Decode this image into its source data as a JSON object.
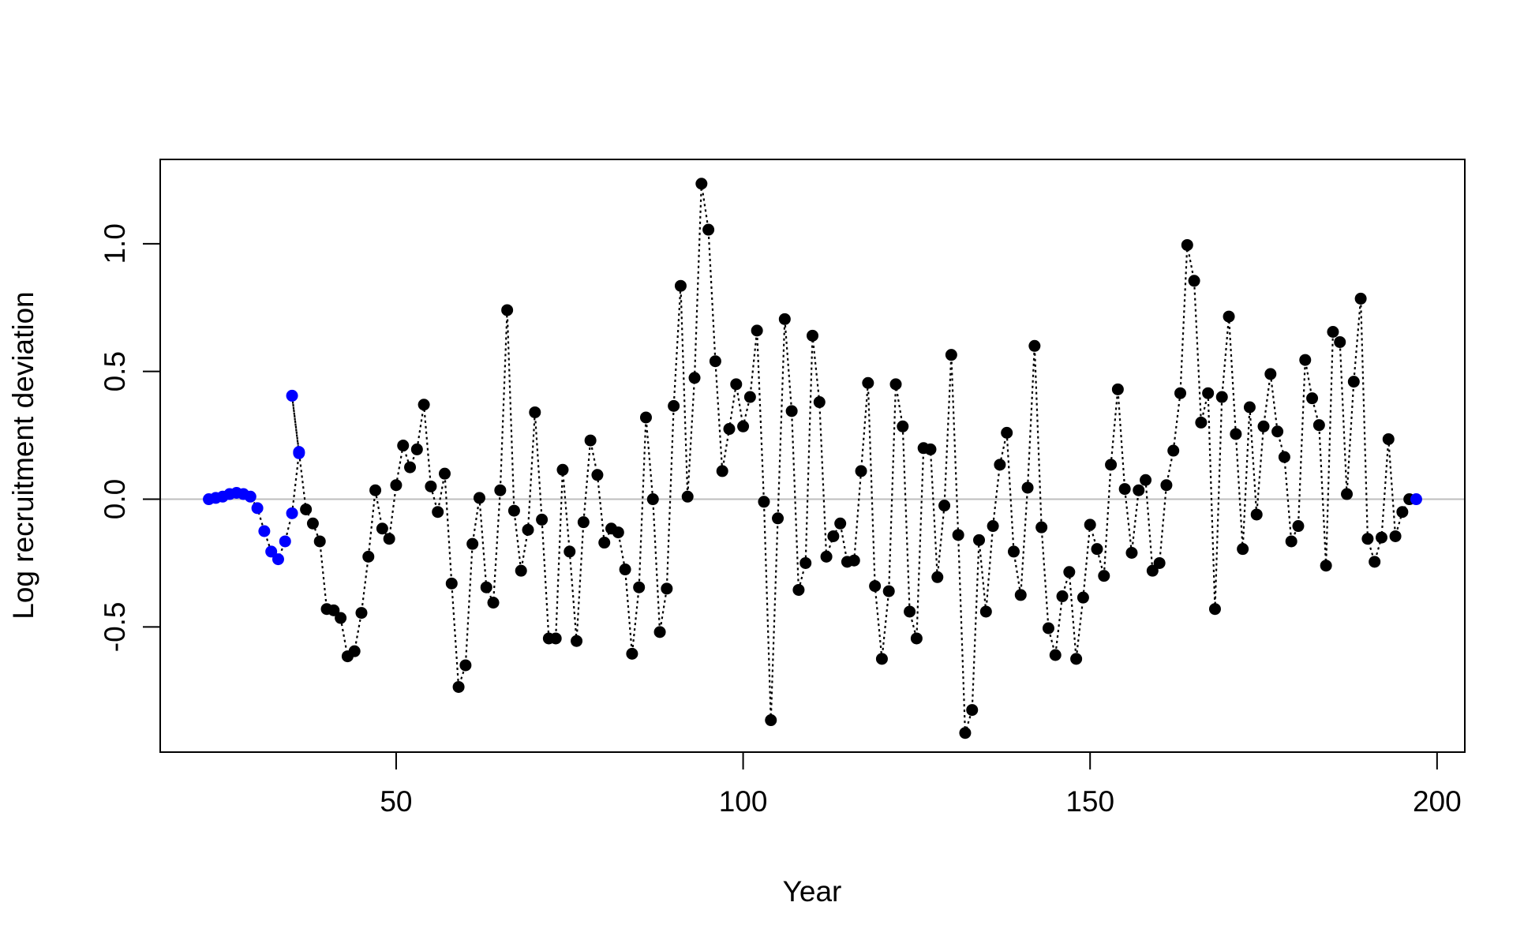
{
  "chart_data": {
    "type": "scatter",
    "title": "",
    "xlabel": "Year",
    "ylabel": "Log recruitment deviation",
    "xlim": [
      16,
      204
    ],
    "ylim": [
      -0.99,
      1.33
    ],
    "x_ticks": [
      50,
      100,
      150,
      200
    ],
    "x_tick_labels": [
      "50",
      "100",
      "150",
      "200"
    ],
    "y_ticks": [
      -0.5,
      0.0,
      0.5,
      1.0
    ],
    "y_tick_labels": [
      "-0.5",
      "0.0",
      "0.5",
      "1.0"
    ],
    "grid": false,
    "legend": "none",
    "reference_line": {
      "y": 0,
      "color": "#bebebe"
    },
    "line_style": "dotted",
    "colors": {
      "early": "#0000ff",
      "main": "#000000",
      "final": "#0000ff"
    },
    "series": [
      {
        "color": "#0000ff",
        "x": [
          23,
          24,
          25,
          26,
          27,
          28,
          29,
          30,
          31,
          32,
          33,
          34,
          35,
          36
        ],
        "y": [
          0.0,
          0.005,
          0.01,
          0.02,
          0.025,
          0.02,
          0.01,
          -0.035,
          -0.125,
          -0.205,
          -0.235,
          -0.165,
          -0.055,
          0.18
        ]
      },
      {
        "color": "#0000ff",
        "x": [
          35,
          36
        ],
        "y": [
          0.405,
          0.185
        ]
      },
      {
        "color": "#000000",
        "x": [
          37,
          38,
          39,
          40,
          41,
          42,
          43,
          44,
          45,
          46,
          47,
          48,
          49,
          50,
          51,
          52,
          53,
          54,
          55,
          56,
          57,
          58,
          59,
          60,
          61,
          62,
          63,
          64,
          65,
          66,
          67,
          68,
          69,
          70,
          71,
          72,
          73,
          74,
          75,
          76,
          77,
          78,
          79,
          80,
          81,
          82,
          83,
          84,
          85,
          86,
          87,
          88,
          89,
          90,
          91,
          92,
          93,
          94,
          95,
          96,
          97,
          98,
          99,
          100,
          101,
          102,
          103,
          104,
          105,
          106,
          107,
          108,
          109,
          110,
          111,
          112,
          113,
          114,
          115,
          116,
          117,
          118,
          119,
          120,
          121,
          122,
          123,
          124,
          125,
          126,
          127,
          128,
          129,
          130,
          131,
          132,
          133,
          134,
          135,
          136,
          137,
          138,
          139,
          140,
          141,
          142,
          143,
          144,
          145,
          146,
          147,
          148,
          149,
          150,
          151,
          152,
          153,
          154,
          155,
          156,
          157,
          158,
          159,
          160,
          161,
          162,
          163,
          164,
          165,
          166,
          167,
          168,
          169,
          170,
          171,
          172,
          173,
          174,
          175,
          176,
          177,
          178,
          179,
          180,
          181,
          182,
          183,
          184,
          185,
          186,
          187,
          188,
          189,
          190,
          191,
          192,
          193,
          194,
          195,
          196
        ],
        "y": [
          -0.04,
          -0.095,
          -0.165,
          -0.43,
          -0.435,
          -0.465,
          -0.615,
          -0.595,
          -0.445,
          -0.225,
          0.035,
          -0.115,
          -0.155,
          0.055,
          0.21,
          0.125,
          0.195,
          0.37,
          0.05,
          -0.05,
          0.1,
          -0.33,
          -0.735,
          -0.65,
          -0.175,
          0.005,
          -0.345,
          -0.405,
          0.035,
          0.74,
          -0.045,
          -0.28,
          -0.12,
          0.34,
          -0.08,
          -0.545,
          -0.545,
          0.115,
          -0.205,
          -0.555,
          -0.09,
          0.23,
          0.095,
          -0.17,
          -0.115,
          -0.13,
          -0.275,
          -0.605,
          -0.345,
          0.32,
          0.0,
          -0.52,
          -0.35,
          0.365,
          0.835,
          0.01,
          0.475,
          1.235,
          1.055,
          0.54,
          0.11,
          0.275,
          0.45,
          0.285,
          0.4,
          0.66,
          -0.01,
          -0.865,
          -0.075,
          0.705,
          0.345,
          -0.355,
          -0.25,
          0.64,
          0.38,
          -0.225,
          -0.145,
          -0.095,
          -0.245,
          -0.24,
          0.11,
          0.455,
          -0.34,
          -0.625,
          -0.36,
          0.45,
          0.285,
          -0.44,
          -0.545,
          0.2,
          0.195,
          -0.305,
          -0.025,
          0.565,
          -0.14,
          -0.915,
          -0.825,
          -0.16,
          -0.44,
          -0.105,
          0.135,
          0.26,
          -0.205,
          -0.375,
          0.045,
          0.6,
          -0.11,
          -0.505,
          -0.61,
          -0.38,
          -0.285,
          -0.625,
          -0.385,
          -0.1,
          -0.195,
          -0.3,
          0.135,
          0.43,
          0.04,
          -0.21,
          0.035,
          0.075,
          -0.28,
          -0.25,
          0.055,
          0.19,
          0.415,
          0.995,
          0.855,
          0.3,
          0.415,
          -0.43,
          0.4,
          0.715,
          0.255,
          -0.195,
          0.36,
          -0.06,
          0.285,
          0.49,
          0.265,
          0.165,
          -0.165,
          -0.105,
          0.545,
          0.395,
          0.29,
          -0.26,
          0.655,
          0.615,
          0.02,
          0.46,
          0.785,
          -0.155,
          -0.245,
          -0.15,
          0.235,
          -0.145,
          -0.05,
          0.0
        ]
      },
      {
        "color": "#0000ff",
        "x": [
          197
        ],
        "y": [
          0.0
        ]
      }
    ]
  }
}
